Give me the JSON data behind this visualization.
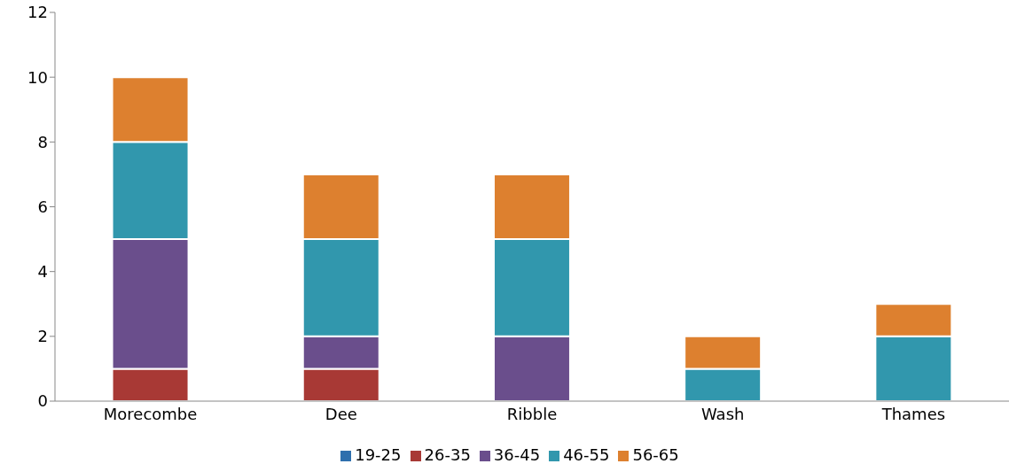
{
  "chart_data": {
    "type": "bar",
    "stacked": true,
    "categories": [
      "Morecombe",
      "Dee",
      "Ribble",
      "Wash",
      "Thames"
    ],
    "series": [
      {
        "name": "19-25",
        "color": "#2e6fad",
        "values": [
          0,
          0,
          0,
          0,
          0
        ]
      },
      {
        "name": "26-35",
        "color": "#a83935",
        "values": [
          1,
          1,
          0,
          0,
          0
        ]
      },
      {
        "name": "36-45",
        "color": "#6a4e8c",
        "values": [
          4,
          1,
          2,
          0,
          0
        ]
      },
      {
        "name": "46-55",
        "color": "#3197ad",
        "values": [
          3,
          3,
          3,
          1,
          2
        ]
      },
      {
        "name": "56-65",
        "color": "#dd802f",
        "values": [
          2,
          2,
          2,
          1,
          1
        ]
      }
    ],
    "ylim": [
      0,
      12
    ],
    "yticks": [
      0,
      2,
      4,
      6,
      8,
      10,
      12
    ],
    "grid": false,
    "legend": "bottom"
  }
}
